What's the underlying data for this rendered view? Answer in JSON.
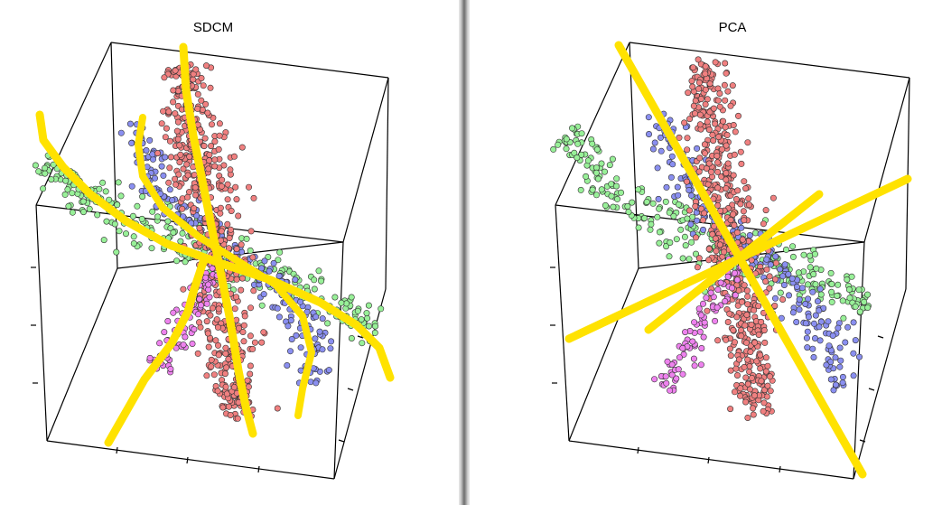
{
  "chart_data": [
    {
      "type": "scatter",
      "title": "SDCM",
      "dimensions": 3,
      "axis_tick_labels": false,
      "grid": false,
      "legend": "none",
      "series": [
        {
          "color": "#f08080",
          "approx_points": 560
        },
        {
          "color": "#8a8ff0",
          "approx_points": 230
        },
        {
          "color": "#98f098",
          "approx_points": 300
        },
        {
          "color": "#ee82ee",
          "approx_points": 90
        }
      ],
      "trajectory_color": "#ffe000",
      "trajectory_style": "curved principal curves (SDCM)"
    },
    {
      "type": "scatter",
      "title": "PCA",
      "dimensions": 3,
      "axis_tick_labels": false,
      "grid": false,
      "legend": "none",
      "series": [
        {
          "color": "#f08080",
          "approx_points": 560
        },
        {
          "color": "#8a8ff0",
          "approx_points": 230
        },
        {
          "color": "#98f098",
          "approx_points": 300
        },
        {
          "color": "#ee82ee",
          "approx_points": 90
        }
      ],
      "trajectory_color": "#ffe000",
      "trajectory_style": "straight principal component lines (PCA)"
    }
  ]
}
